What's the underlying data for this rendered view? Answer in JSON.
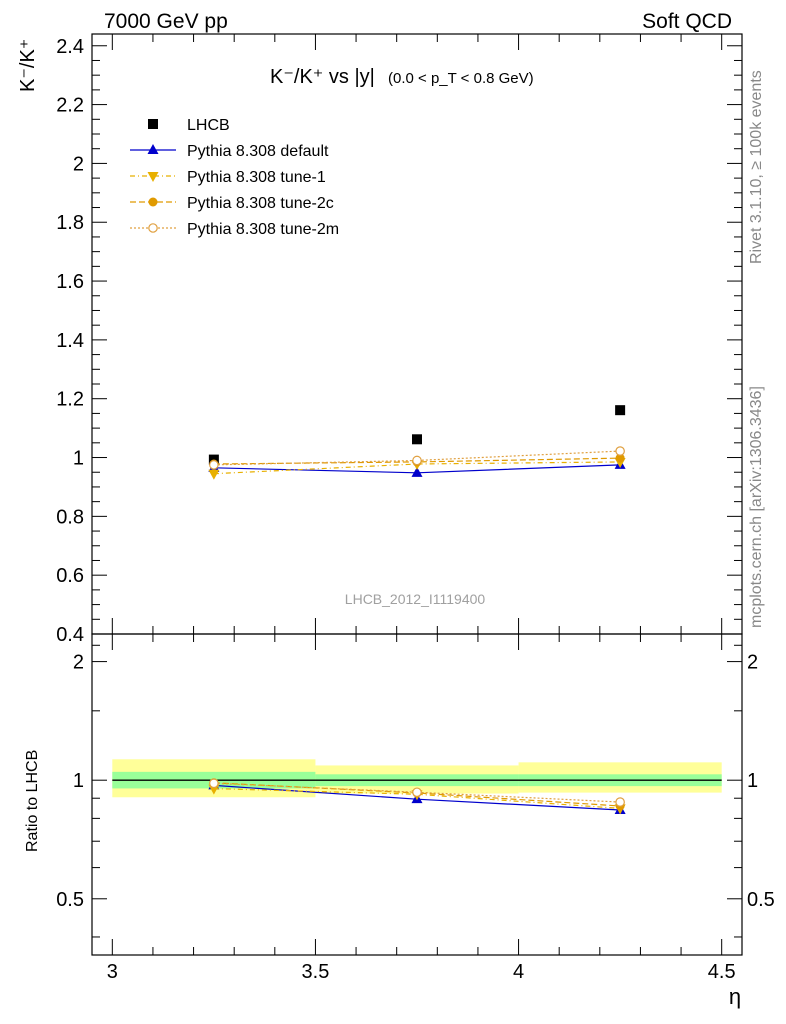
{
  "header": {
    "left": "7000 GeV pp",
    "right": "Soft QCD"
  },
  "side_labels": {
    "rivet": "Rivet 3.1.10, ≥ 100k events",
    "mcplots": "mcplots.cern.ch [arXiv:1306.3436]"
  },
  "main_title": {
    "ratio": "K⁻/K⁺ vs |y|",
    "cut": "(0.0 < p_T < 0.8 GeV)"
  },
  "watermark": "LHCB_2012_I1119400",
  "colors": {
    "data": "#000000",
    "default": "#0000cc",
    "tune1": "#e8b000",
    "tune2c": "#e09a00",
    "tune2m": "#e0a040",
    "band_inner": "#99ff99",
    "band_outer": "#ffff99"
  },
  "chart_data": [
    {
      "type": "scatter",
      "title": "K⁻/K⁺ vs |y| (0.0 < p_T < 0.8 GeV)",
      "ylabel": "K⁻/K⁺",
      "xlabel": "",
      "xlim": [
        2.95,
        4.55
      ],
      "ylim": [
        0.4,
        2.44
      ],
      "x_ticks": [
        3,
        3.5,
        4,
        4.5
      ],
      "y_ticks": [
        0.4,
        0.6,
        0.8,
        1,
        1.2,
        1.4,
        1.6,
        1.8,
        2,
        2.2,
        2.4
      ],
      "y_tick_labels": [
        "0.4",
        "0.6",
        "0.8",
        "1",
        "1.2",
        "1.4",
        "1.6",
        "1.8",
        "2",
        "2.2",
        "2.4"
      ],
      "legend_placement": "top-left",
      "series": [
        {
          "name": "LHCB",
          "style": "data",
          "x": [
            3.25,
            3.75,
            4.25
          ],
          "y": [
            0.993,
            1.062,
            1.161
          ]
        },
        {
          "name": "Pythia 8.308 default",
          "style": "default",
          "x": [
            3.25,
            3.75,
            4.25
          ],
          "y": [
            0.965,
            0.948,
            0.975
          ]
        },
        {
          "name": "Pythia 8.308 tune-1",
          "style": "tune1",
          "x": [
            3.25,
            3.75,
            4.25
          ],
          "y": [
            0.945,
            0.978,
            0.985
          ]
        },
        {
          "name": "Pythia 8.308 tune-2c",
          "style": "tune2c",
          "x": [
            3.25,
            3.75,
            4.25
          ],
          "y": [
            0.978,
            0.985,
            0.998
          ]
        },
        {
          "name": "Pythia 8.308 tune-2m",
          "style": "tune2m",
          "x": [
            3.25,
            3.75,
            4.25
          ],
          "y": [
            0.975,
            0.99,
            1.022
          ]
        }
      ]
    },
    {
      "type": "scatter",
      "ylabel": "Ratio to LHCB",
      "xlabel": "η",
      "xlim": [
        2.95,
        4.55
      ],
      "ylim": [
        0.36,
        2.35
      ],
      "y_scale": "log",
      "x_ticks": [
        3,
        3.5,
        4,
        4.5
      ],
      "x_tick_labels": [
        "3",
        "3.5",
        "4",
        "4.5"
      ],
      "y_ticks": [
        0.5,
        1,
        2
      ],
      "y_tick_labels": [
        "0.5",
        "1",
        "2"
      ],
      "bands": [
        {
          "x": [
            3.0,
            3.5
          ],
          "inner": [
            0.953,
            1.05
          ],
          "outer": [
            0.905,
            1.13
          ]
        },
        {
          "x": [
            3.5,
            4.0
          ],
          "inner": [
            0.966,
            1.035
          ],
          "outer": [
            0.925,
            1.09
          ]
        },
        {
          "x": [
            4.0,
            4.5
          ],
          "inner": [
            0.966,
            1.035
          ],
          "outer": [
            0.93,
            1.11
          ]
        }
      ],
      "series": [
        {
          "name": "Pythia 8.308 default",
          "style": "default",
          "x": [
            3.25,
            3.75,
            4.25
          ],
          "y": [
            0.97,
            0.895,
            0.84
          ]
        },
        {
          "name": "Pythia 8.308 tune-1",
          "style": "tune1",
          "x": [
            3.25,
            3.75,
            4.25
          ],
          "y": [
            0.952,
            0.921,
            0.848
          ]
        },
        {
          "name": "Pythia 8.308 tune-2c",
          "style": "tune2c",
          "x": [
            3.25,
            3.75,
            4.25
          ],
          "y": [
            0.985,
            0.928,
            0.86
          ]
        },
        {
          "name": "Pythia 8.308 tune-2m",
          "style": "tune2m",
          "x": [
            3.25,
            3.75,
            4.25
          ],
          "y": [
            0.982,
            0.932,
            0.88
          ]
        }
      ]
    }
  ]
}
